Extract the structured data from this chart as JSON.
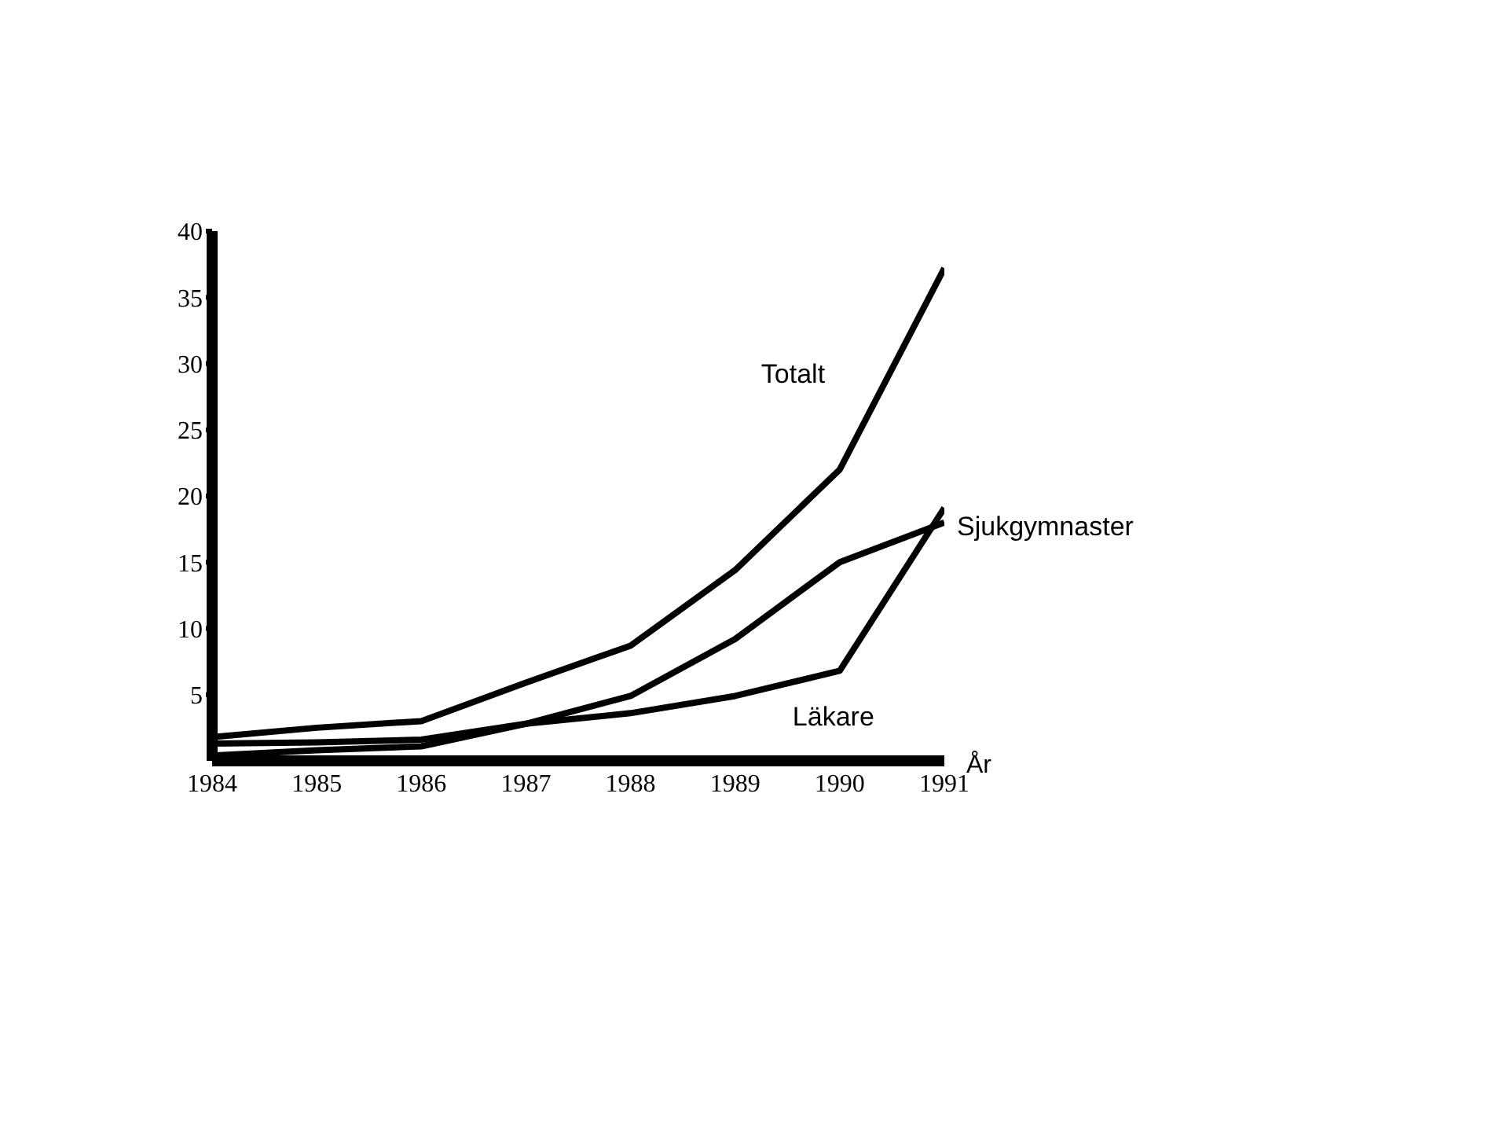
{
  "chart_data": {
    "type": "line",
    "xlabel": "År",
    "x": [
      1984,
      1985,
      1986,
      1987,
      1988,
      1989,
      1990,
      1991
    ],
    "xlim": [
      1984,
      1991
    ],
    "xticks": [
      1984,
      1985,
      1986,
      1987,
      1988,
      1989,
      1990,
      1991
    ],
    "ylim": [
      0,
      40
    ],
    "yticks": [
      5,
      10,
      15,
      20,
      25,
      30,
      35,
      40
    ],
    "grid": false,
    "legend": false,
    "marker": "none",
    "line_style": "solid",
    "series": [
      {
        "name": "Totalt",
        "color": "#000000",
        "values": [
          1.8,
          2.5,
          3.0,
          5.9,
          8.7,
          14.4,
          22.0,
          37.2
        ]
      },
      {
        "name": "Sjukgymnaster",
        "color": "#000000",
        "values": [
          1.3,
          1.4,
          1.6,
          2.8,
          4.9,
          9.2,
          15.0,
          18.0
        ]
      },
      {
        "name": "Läkare",
        "color": "#000000",
        "values": [
          0.4,
          0.8,
          1.1,
          2.8,
          3.6,
          4.9,
          6.8,
          19.1
        ]
      }
    ]
  }
}
